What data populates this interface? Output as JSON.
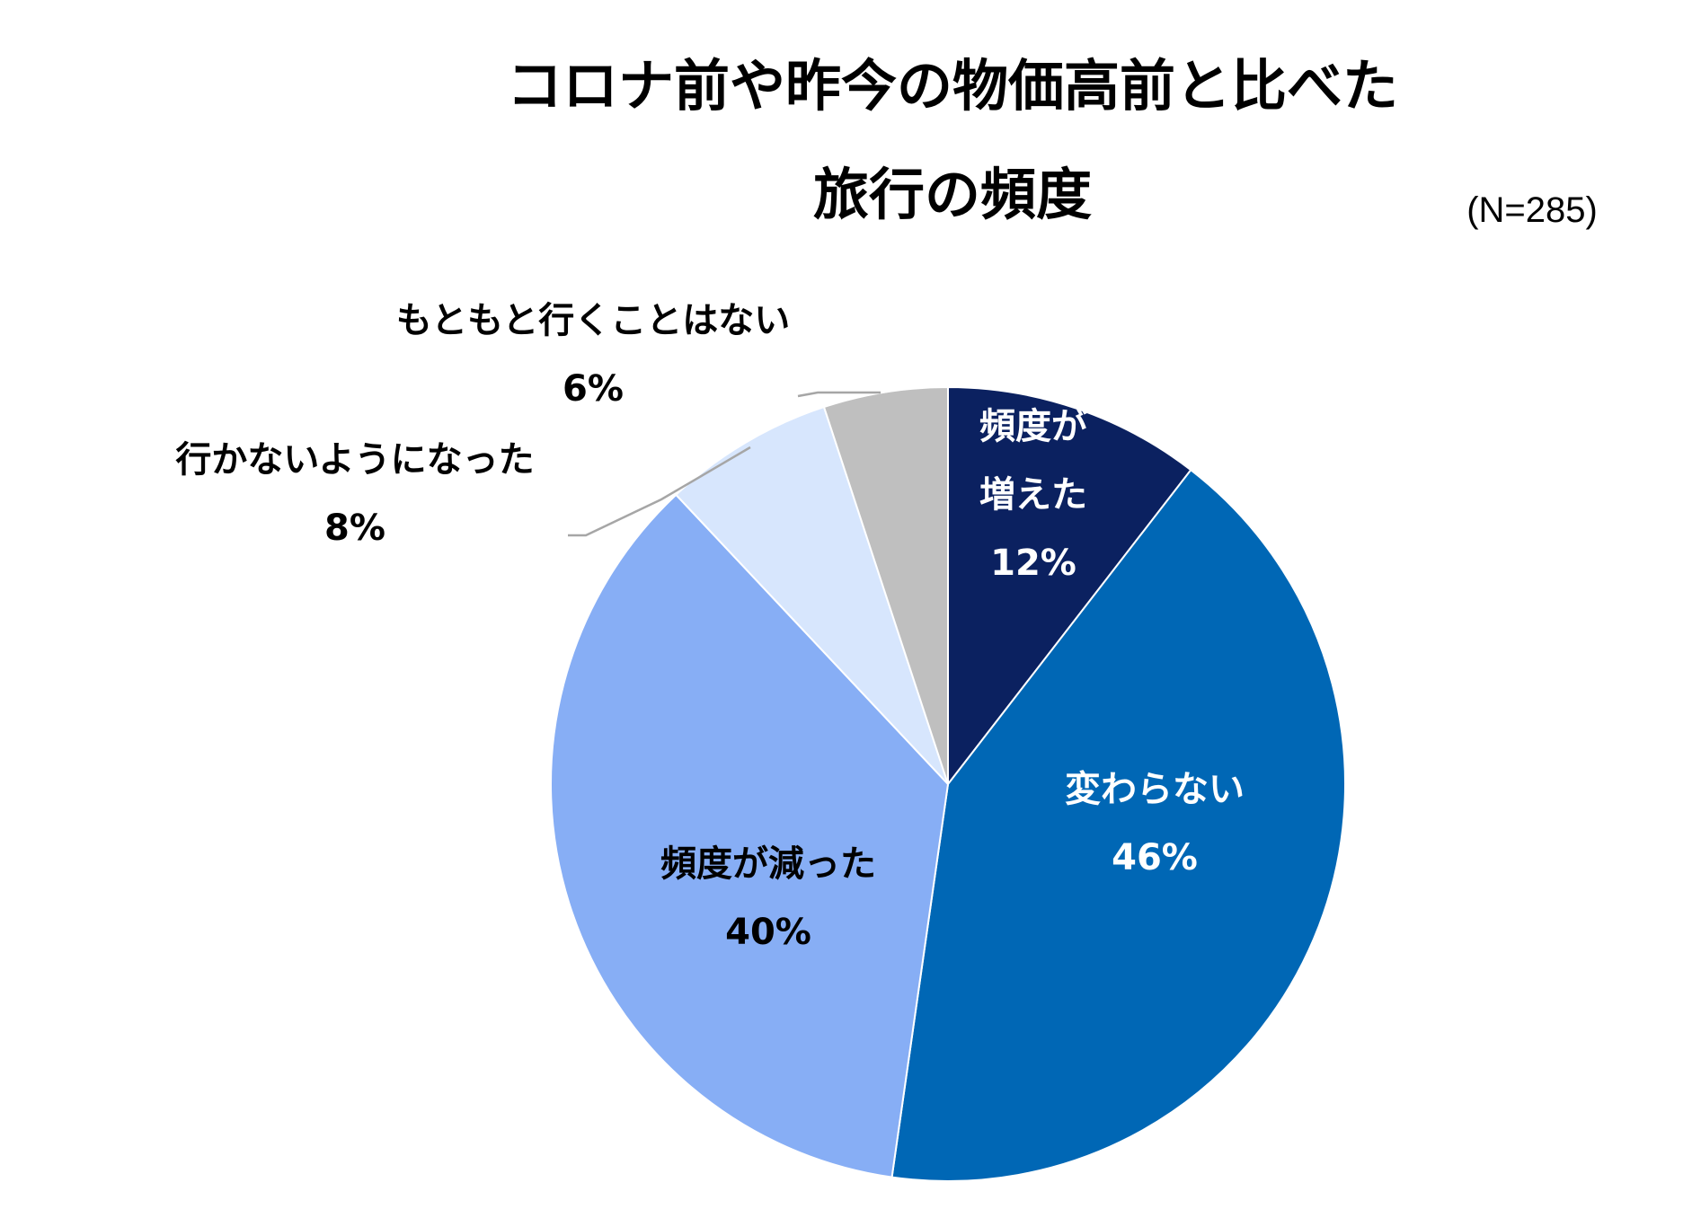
{
  "title_line1": "コロナ前や昨今の物価高前と比べた",
  "title_line2": "旅行の頻度",
  "sample_note": "(N=285)",
  "chart_data": {
    "type": "pie",
    "start_angle_deg": 0,
    "direction": "clockwise",
    "slices": [
      {
        "label_lines": [
          "頻度が",
          "増えた"
        ],
        "value_label": "12%",
        "value": 11.6,
        "color": "#0B2160",
        "text_color": "#FFFFFF"
      },
      {
        "label_lines": [
          "変わらない"
        ],
        "value_label": "46%",
        "value": 46.3,
        "color": "#0067B5",
        "text_color": "#FFFFFF"
      },
      {
        "label_lines": [
          "頻度が減った"
        ],
        "value_label": "40%",
        "value": 39.6,
        "color": "#87AEF5",
        "text_color": "#000000"
      },
      {
        "label_lines": [
          "行かないようになった"
        ],
        "value_label": "8%",
        "value": 7.7,
        "color": "#D7E6FD",
        "text_color": "#000000"
      },
      {
        "label_lines": [
          "もともと行くことはない"
        ],
        "value_label": "6%",
        "value": 5.6,
        "color": "#BFBFBF",
        "text_color": "#000000"
      }
    ]
  }
}
